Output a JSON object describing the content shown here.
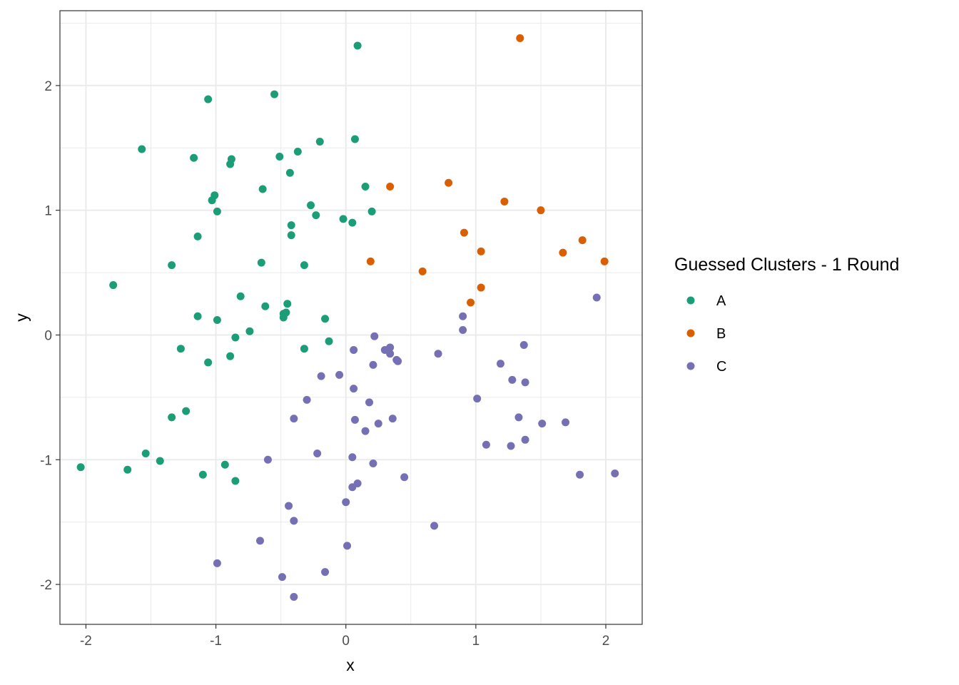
{
  "chart_data": {
    "type": "scatter",
    "xlabel": "x",
    "ylabel": "y",
    "xlim": [
      -2.2,
      2.28
    ],
    "ylim": [
      -2.32,
      2.6
    ],
    "x_ticks": [
      -2,
      -1,
      0,
      1,
      2
    ],
    "y_ticks": [
      -2,
      -1,
      0,
      1,
      2
    ],
    "x_tick_labels": [
      "-2",
      "-1",
      "0",
      "1",
      "2"
    ],
    "y_tick_labels": [
      "-2",
      "-1",
      "0",
      "1",
      "2"
    ],
    "grid": true,
    "legend_position": "right",
    "legend_title": "Guessed Clusters - 1 Round",
    "colors": {
      "A": "#1b9e77",
      "B": "#d95f02",
      "C": "#7570b3"
    },
    "series": [
      {
        "name": "A",
        "points": [
          [
            0.09,
            2.32
          ],
          [
            -0.55,
            1.93
          ],
          [
            -1.06,
            1.89
          ],
          [
            -1.57,
            1.49
          ],
          [
            -1.17,
            1.42
          ],
          [
            -0.88,
            1.41
          ],
          [
            -0.89,
            1.37
          ],
          [
            -0.51,
            1.43
          ],
          [
            -0.37,
            1.47
          ],
          [
            -0.2,
            1.55
          ],
          [
            0.07,
            1.57
          ],
          [
            -0.43,
            1.3
          ],
          [
            0.15,
            1.19
          ],
          [
            -0.64,
            1.17
          ],
          [
            -1.01,
            1.12
          ],
          [
            -1.03,
            1.08
          ],
          [
            -0.99,
            0.99
          ],
          [
            -0.27,
            1.04
          ],
          [
            -0.23,
            0.96
          ],
          [
            -0.02,
            0.93
          ],
          [
            0.05,
            0.9
          ],
          [
            0.2,
            0.99
          ],
          [
            -0.42,
            0.88
          ],
          [
            -0.42,
            0.8
          ],
          [
            -1.14,
            0.79
          ],
          [
            -1.34,
            0.56
          ],
          [
            -0.65,
            0.58
          ],
          [
            -0.32,
            0.56
          ],
          [
            -1.79,
            0.4
          ],
          [
            -0.81,
            0.31
          ],
          [
            -0.45,
            0.25
          ],
          [
            -0.62,
            0.23
          ],
          [
            -0.48,
            0.17
          ],
          [
            -0.46,
            0.18
          ],
          [
            -0.48,
            0.14
          ],
          [
            -1.14,
            0.15
          ],
          [
            -0.99,
            0.12
          ],
          [
            -0.16,
            0.13
          ],
          [
            -0.74,
            0.03
          ],
          [
            -0.85,
            -0.02
          ],
          [
            -0.13,
            -0.05
          ],
          [
            -1.27,
            -0.11
          ],
          [
            -0.32,
            -0.11
          ],
          [
            -0.89,
            -0.17
          ],
          [
            -1.06,
            -0.22
          ],
          [
            -1.23,
            -0.61
          ],
          [
            -1.34,
            -0.66
          ],
          [
            -1.54,
            -0.95
          ],
          [
            -1.43,
            -1.01
          ],
          [
            -2.04,
            -1.06
          ],
          [
            -1.68,
            -1.08
          ],
          [
            -1.1,
            -1.12
          ],
          [
            -0.93,
            -1.04
          ],
          [
            -0.85,
            -1.17
          ]
        ]
      },
      {
        "name": "B",
        "points": [
          [
            1.34,
            2.38
          ],
          [
            0.34,
            1.19
          ],
          [
            0.79,
            1.22
          ],
          [
            1.22,
            1.07
          ],
          [
            1.5,
            1.0
          ],
          [
            0.91,
            0.82
          ],
          [
            1.04,
            0.67
          ],
          [
            1.67,
            0.66
          ],
          [
            1.82,
            0.76
          ],
          [
            1.99,
            0.59
          ],
          [
            0.19,
            0.59
          ],
          [
            0.59,
            0.51
          ],
          [
            1.04,
            0.38
          ],
          [
            0.96,
            0.26
          ]
        ]
      },
      {
        "name": "C",
        "points": [
          [
            1.93,
            0.3
          ],
          [
            0.9,
            0.15
          ],
          [
            0.9,
            0.04
          ],
          [
            0.22,
            -0.01
          ],
          [
            1.37,
            -0.08
          ],
          [
            0.34,
            -0.1
          ],
          [
            0.06,
            -0.12
          ],
          [
            0.3,
            -0.12
          ],
          [
            0.34,
            -0.15
          ],
          [
            0.71,
            -0.15
          ],
          [
            0.39,
            -0.2
          ],
          [
            0.4,
            -0.21
          ],
          [
            1.19,
            -0.23
          ],
          [
            0.21,
            -0.24
          ],
          [
            -0.19,
            -0.33
          ],
          [
            -0.05,
            -0.32
          ],
          [
            1.28,
            -0.36
          ],
          [
            1.38,
            -0.38
          ],
          [
            0.06,
            -0.43
          ],
          [
            -0.3,
            -0.52
          ],
          [
            1.01,
            -0.51
          ],
          [
            0.18,
            -0.54
          ],
          [
            -0.4,
            -0.67
          ],
          [
            0.07,
            -0.68
          ],
          [
            0.36,
            -0.67
          ],
          [
            1.33,
            -0.66
          ],
          [
            0.25,
            -0.71
          ],
          [
            1.51,
            -0.71
          ],
          [
            1.69,
            -0.7
          ],
          [
            0.15,
            -0.77
          ],
          [
            1.38,
            -0.84
          ],
          [
            1.08,
            -0.88
          ],
          [
            1.27,
            -0.89
          ],
          [
            -0.22,
            -0.95
          ],
          [
            -0.6,
            -1.0
          ],
          [
            0.05,
            -0.98
          ],
          [
            0.21,
            -1.03
          ],
          [
            1.8,
            -1.12
          ],
          [
            2.07,
            -1.11
          ],
          [
            0.45,
            -1.14
          ],
          [
            0.09,
            -1.19
          ],
          [
            0.05,
            -1.22
          ],
          [
            0.0,
            -1.34
          ],
          [
            -0.44,
            -1.37
          ],
          [
            -0.4,
            -1.49
          ],
          [
            0.68,
            -1.53
          ],
          [
            -0.66,
            -1.65
          ],
          [
            0.01,
            -1.69
          ],
          [
            -0.99,
            -1.83
          ],
          [
            -0.16,
            -1.9
          ],
          [
            -0.49,
            -1.94
          ],
          [
            -0.4,
            -2.1
          ]
        ]
      }
    ]
  }
}
